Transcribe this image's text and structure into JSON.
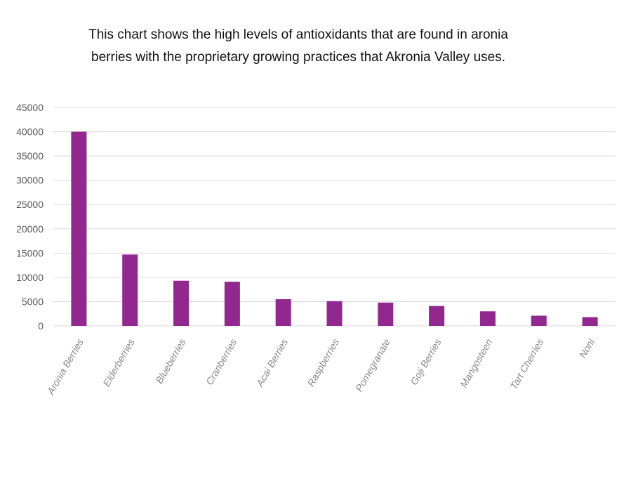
{
  "caption": {
    "line1": "This chart shows the high levels of antioxidants that are found in aronia",
    "line2": "berries with the proprietary growing practices that Akronia Valley uses."
  },
  "colors": {
    "bar": "#92278F",
    "grid": "#d9d9d9",
    "tick_text": "#595959",
    "category_text": "#8a8a8a"
  },
  "chart_data": {
    "type": "bar",
    "categories": [
      "Aronia Berries",
      "Elderberries",
      "Blueberries",
      "Cranberries",
      "Acai Berries",
      "Raspberries",
      "Pomegranate",
      "Goji Berries",
      "Mangosteen",
      "Tart Cherries",
      "Noni"
    ],
    "values": [
      40000,
      14700,
      9300,
      9100,
      5500,
      5100,
      4800,
      4100,
      3000,
      2100,
      1800
    ],
    "yticks": [
      0,
      5000,
      10000,
      15000,
      20000,
      25000,
      30000,
      35000,
      40000,
      45000
    ],
    "ylim": [
      0,
      45000
    ],
    "grid": true,
    "legend": "none"
  }
}
